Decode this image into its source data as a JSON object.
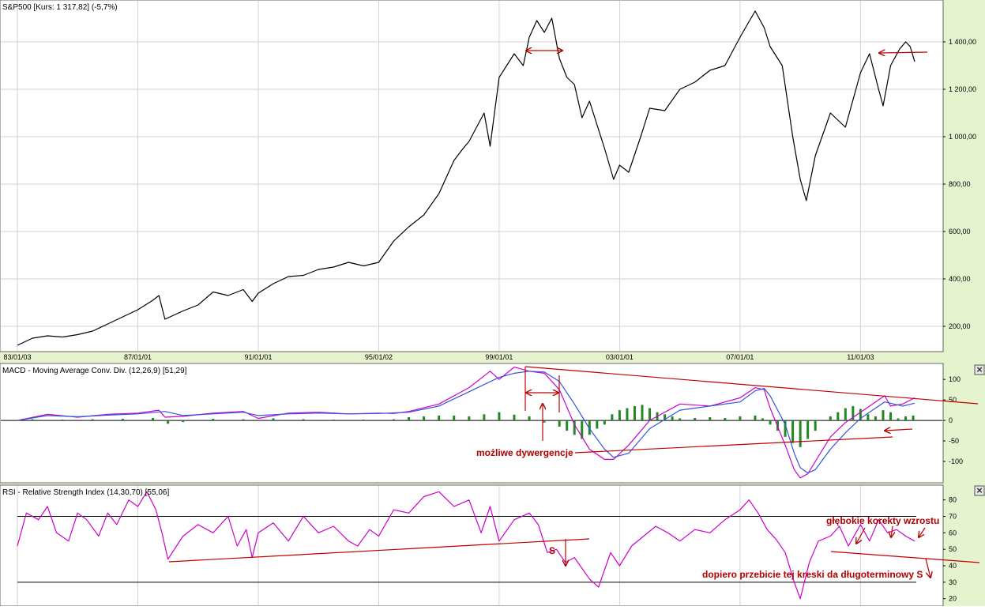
{
  "chart_data": [
    {
      "type": "line",
      "title": "S&P500 [Kurs: 1 317,82] (-5,7%)",
      "x_labels": [
        "83/01/03",
        "87/01/01",
        "91/01/01",
        "95/01/02",
        "99/01/01",
        "03/01/01",
        "07/01/01",
        "11/01/03"
      ],
      "y_ticks": [
        "200,00",
        "400,00",
        "600,00",
        "800,00",
        "1 000,00",
        "1 200,00",
        "1 400,00"
      ],
      "ylim": [
        110,
        1560
      ],
      "grid": true,
      "series": [
        {
          "color": "#000000",
          "x": [
            1983.0,
            1983.5,
            1984.0,
            1984.5,
            1985.0,
            1985.5,
            1986.0,
            1986.5,
            1987.0,
            1987.5,
            1987.7,
            1987.9,
            1988.5,
            1989.0,
            1989.5,
            1990.0,
            1990.5,
            1990.8,
            1991.0,
            1991.5,
            1992.0,
            1992.5,
            1993.0,
            1993.5,
            1994.0,
            1994.5,
            1995.0,
            1995.5,
            1996.0,
            1996.5,
            1997.0,
            1997.5,
            1997.8,
            1998.0,
            1998.5,
            1998.7,
            1999.0,
            1999.5,
            1999.8,
            2000.0,
            2000.25,
            2000.5,
            2000.75,
            2001.0,
            2001.25,
            2001.5,
            2001.75,
            2002.0,
            2002.5,
            2002.8,
            2003.0,
            2003.3,
            2003.7,
            2004.0,
            2004.5,
            2005.0,
            2005.5,
            2006.0,
            2006.5,
            2007.0,
            2007.5,
            2007.8,
            2008.0,
            2008.4,
            2008.75,
            2009.0,
            2009.2,
            2009.5,
            2010.0,
            2010.5,
            2011.0,
            2011.3,
            2011.6,
            2011.75,
            2012.0,
            2012.3,
            2012.5,
            2012.65,
            2012.8
          ],
          "y": [
            120,
            150,
            160,
            155,
            165,
            180,
            210,
            240,
            270,
            310,
            330,
            230,
            265,
            290,
            345,
            330,
            355,
            305,
            340,
            380,
            410,
            415,
            440,
            450,
            470,
            455,
            470,
            560,
            620,
            670,
            760,
            900,
            950,
            980,
            1100,
            960,
            1250,
            1350,
            1300,
            1420,
            1490,
            1440,
            1500,
            1330,
            1250,
            1220,
            1080,
            1150,
            950,
            820,
            880,
            850,
            1000,
            1120,
            1110,
            1200,
            1230,
            1280,
            1300,
            1420,
            1530,
            1460,
            1380,
            1300,
            1000,
            820,
            730,
            920,
            1100,
            1040,
            1270,
            1350,
            1200,
            1130,
            1300,
            1370,
            1400,
            1380,
            1317
          ]
        }
      ]
    },
    {
      "type": "line",
      "title": "MACD - Moving Average Conv. Div. (12,26,9) [51,29]",
      "y_ticks": [
        "100",
        "50",
        "0",
        "-50",
        "-100"
      ],
      "ylim": [
        -150,
        135
      ],
      "series": [
        {
          "color": "#cc00cc",
          "x": [
            1983.0,
            1984.0,
            1985.0,
            1986.0,
            1987.0,
            1987.7,
            1987.9,
            1988.5,
            1989.5,
            1990.5,
            1991.0,
            1992.0,
            1993.0,
            1994.0,
            1995.0,
            1995.5,
            1996.0,
            1997.0,
            1998.0,
            1998.7,
            1999.0,
            1999.5,
            2000.0,
            2000.5,
            2001.0,
            2001.5,
            2002.0,
            2002.5,
            2002.8,
            2003.3,
            2004.0,
            2005.0,
            2006.0,
            2007.0,
            2007.5,
            2007.8,
            2008.0,
            2008.5,
            2008.8,
            2009.0,
            2009.25,
            2009.5,
            2010.0,
            2010.5,
            2011.0,
            2011.5,
            2011.8,
            2012.0,
            2012.4,
            2012.8
          ],
          "y": [
            0,
            15,
            8,
            15,
            18,
            25,
            8,
            10,
            18,
            22,
            5,
            18,
            20,
            16,
            18,
            17,
            22,
            40,
            80,
            120,
            100,
            130,
            120,
            115,
            75,
            -10,
            -70,
            -95,
            -95,
            -60,
            0,
            40,
            35,
            55,
            80,
            75,
            30,
            -60,
            -120,
            -140,
            -130,
            -100,
            -40,
            -5,
            20,
            45,
            60,
            35,
            40,
            55
          ]
        },
        {
          "color": "#3355dd",
          "x": [
            1983.0,
            1984.0,
            1985.0,
            1986.0,
            1987.0,
            1987.9,
            1988.5,
            1989.5,
            1990.5,
            1991.0,
            1992.0,
            1993.0,
            1994.0,
            1995.0,
            1996.0,
            1997.0,
            1998.0,
            1999.0,
            1999.5,
            2000.0,
            2000.5,
            2001.0,
            2001.5,
            2002.0,
            2002.5,
            2002.8,
            2003.3,
            2004.0,
            2005.0,
            2006.0,
            2007.0,
            2007.5,
            2007.8,
            2008.0,
            2008.5,
            2008.8,
            2009.0,
            2009.25,
            2009.5,
            2010.0,
            2010.5,
            2011.0,
            2011.5,
            2011.8,
            2012.0,
            2012.4,
            2012.8
          ],
          "y": [
            0,
            12,
            9,
            13,
            16,
            22,
            12,
            16,
            20,
            12,
            16,
            18,
            16,
            17,
            20,
            35,
            70,
            105,
            115,
            120,
            118,
            95,
            40,
            -20,
            -70,
            -90,
            -80,
            -20,
            25,
            35,
            45,
            72,
            78,
            60,
            -10,
            -80,
            -115,
            -128,
            -120,
            -70,
            -30,
            5,
            30,
            45,
            42,
            35,
            42
          ]
        }
      ],
      "histogram": {
        "color": "#228822",
        "x": [
          1983.5,
          1984.5,
          1985.5,
          1986.5,
          1987.5,
          1988.0,
          1988.5,
          1989.5,
          1990.5,
          1991.5,
          1992.5,
          1993.5,
          1994.5,
          1995.5,
          1996.0,
          1996.5,
          1997.0,
          1997.5,
          1998.0,
          1998.5,
          1999.0,
          1999.5,
          2000.0,
          2000.5,
          2001.0,
          2001.25,
          2001.5,
          2001.75,
          2002.0,
          2002.25,
          2002.5,
          2002.75,
          2003.0,
          2003.25,
          2003.5,
          2003.75,
          2004.0,
          2004.25,
          2004.5,
          2004.75,
          2005.0,
          2005.5,
          2006.0,
          2006.5,
          2007.0,
          2007.5,
          2007.75,
          2008.0,
          2008.25,
          2008.5,
          2008.75,
          2009.0,
          2009.25,
          2009.5,
          2010.0,
          2010.25,
          2010.5,
          2010.75,
          2011.0,
          2011.25,
          2011.5,
          2011.75,
          2012.0,
          2012.25,
          2012.5,
          2012.75
        ],
        "values": [
          3,
          2,
          3,
          4,
          6,
          -8,
          -4,
          4,
          3,
          5,
          3,
          2,
          2,
          3,
          8,
          10,
          12,
          12,
          10,
          15,
          20,
          14,
          10,
          -5,
          -15,
          -25,
          -35,
          -45,
          -35,
          -20,
          -10,
          15,
          25,
          30,
          35,
          38,
          30,
          20,
          15,
          10,
          5,
          6,
          8,
          6,
          10,
          12,
          5,
          -10,
          -25,
          -40,
          -55,
          -65,
          -45,
          -25,
          10,
          20,
          30,
          35,
          28,
          15,
          10,
          25,
          20,
          5,
          10,
          12
        ]
      }
    },
    {
      "type": "line",
      "title": "RSI - Relative Strength Index (14,30,70) [55,06]",
      "y_ticks": [
        "80",
        "70",
        "60",
        "50",
        "40",
        "30",
        "20"
      ],
      "ylim": [
        16,
        88
      ],
      "levels": [
        70,
        30
      ],
      "series": [
        {
          "color": "#cc00cc",
          "x": [
            1983.0,
            1983.3,
            1983.7,
            1984.0,
            1984.3,
            1984.7,
            1985.0,
            1985.3,
            1985.7,
            1986.0,
            1986.3,
            1986.7,
            1987.0,
            1987.3,
            1987.6,
            1987.8,
            1988.0,
            1988.5,
            1989.0,
            1989.5,
            1990.0,
            1990.3,
            1990.6,
            1990.8,
            1991.0,
            1991.5,
            1992.0,
            1992.5,
            1993.0,
            1993.5,
            1994.0,
            1994.3,
            1994.7,
            1995.0,
            1995.5,
            1996.0,
            1996.5,
            1997.0,
            1997.5,
            1998.0,
            1998.4,
            1998.7,
            1999.0,
            1999.5,
            2000.0,
            2000.3,
            2000.6,
            2000.9,
            2001.2,
            2001.5,
            2002.0,
            2002.3,
            2002.7,
            2003.0,
            2003.4,
            2003.8,
            2004.2,
            2004.6,
            2005.0,
            2005.5,
            2006.0,
            2006.5,
            2007.0,
            2007.3,
            2007.6,
            2007.9,
            2008.2,
            2008.5,
            2008.8,
            2009.0,
            2009.3,
            2009.6,
            2010.0,
            2010.3,
            2010.6,
            2011.0,
            2011.3,
            2011.6,
            2011.9,
            2012.2,
            2012.5,
            2012.8
          ],
          "y": [
            52,
            72,
            68,
            76,
            60,
            55,
            72,
            68,
            58,
            72,
            65,
            80,
            76,
            85,
            74,
            60,
            44,
            58,
            65,
            60,
            70,
            52,
            62,
            45,
            60,
            66,
            55,
            70,
            60,
            64,
            55,
            52,
            62,
            58,
            74,
            72,
            82,
            85,
            76,
            80,
            60,
            76,
            55,
            68,
            72,
            65,
            48,
            50,
            42,
            45,
            32,
            27,
            48,
            40,
            52,
            58,
            64,
            60,
            55,
            62,
            60,
            68,
            74,
            80,
            72,
            62,
            56,
            48,
            30,
            20,
            42,
            55,
            58,
            64,
            52,
            65,
            55,
            68,
            60,
            62,
            58,
            55
          ]
        }
      ]
    }
  ],
  "annotations": {
    "divergence": "możliwe dywergencje",
    "sell": "S",
    "deep_corrections": "głębokie korekty wzrostu",
    "break_note": "dopiero przebicie tej kreski da długoterminowy S"
  },
  "colors": {
    "background": "#e6f3cf",
    "pane": "#ffffff",
    "price_line": "#000000",
    "macd_line": "#cc00cc",
    "signal_line": "#3355dd",
    "histogram": "#228822",
    "rsi_line": "#cc00cc",
    "annotation": "#b00000"
  },
  "icons": {
    "close": "close-icon"
  },
  "close_glyph": "×"
}
